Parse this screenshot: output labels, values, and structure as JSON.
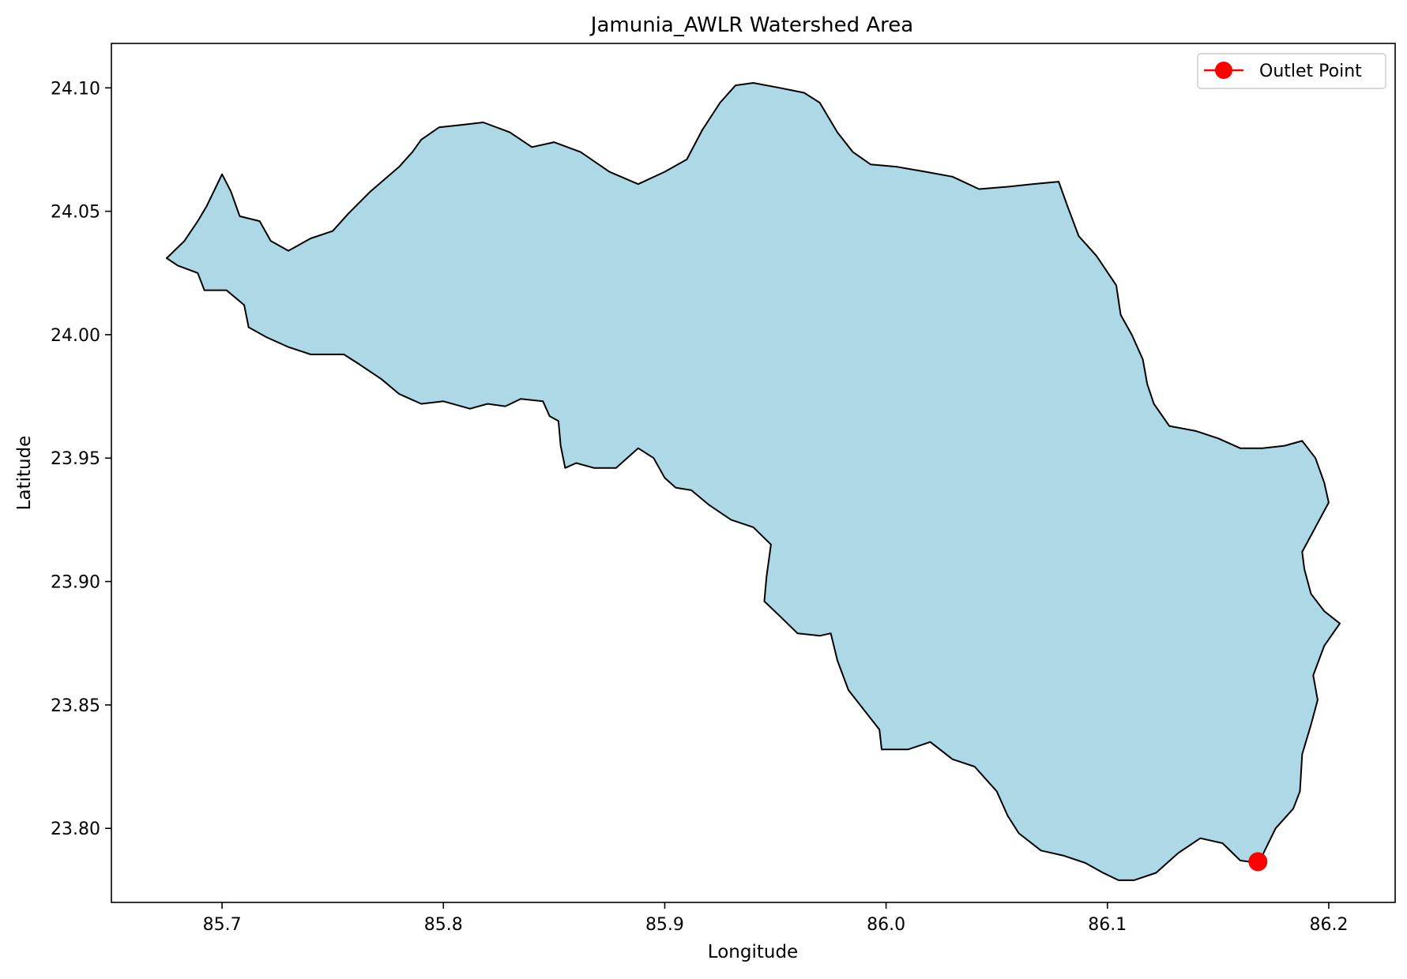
{
  "chart_data": {
    "type": "map",
    "title": "Jamunia_AWLR Watershed Area",
    "xlabel": "Longitude",
    "ylabel": "Latitude",
    "xlim": [
      85.65,
      86.23
    ],
    "ylim": [
      23.77,
      24.118
    ],
    "x_ticks": [
      85.7,
      85.8,
      85.9,
      86.0,
      86.1,
      86.2
    ],
    "x_tick_labels": [
      "85.7",
      "85.8",
      "85.9",
      "86.0",
      "86.1",
      "86.2"
    ],
    "y_ticks": [
      23.8,
      23.85,
      23.9,
      23.95,
      24.0,
      24.05,
      24.1
    ],
    "y_tick_labels": [
      "23.80",
      "23.85",
      "23.90",
      "23.95",
      "24.00",
      "24.05",
      "24.10"
    ],
    "grid": false,
    "legend": {
      "placement": "top-right",
      "entries": [
        "Outlet Point"
      ]
    },
    "watershed": {
      "fill": "#add8e6",
      "edge": "#000000",
      "boundary": [
        [
          85.675,
          24.031
        ],
        [
          85.683,
          24.038
        ],
        [
          85.689,
          24.046
        ],
        [
          85.693,
          24.052
        ],
        [
          85.7,
          24.065
        ],
        [
          85.704,
          24.058
        ],
        [
          85.708,
          24.048
        ],
        [
          85.717,
          24.046
        ],
        [
          85.722,
          24.038
        ],
        [
          85.73,
          24.034
        ],
        [
          85.74,
          24.039
        ],
        [
          85.75,
          24.042
        ],
        [
          85.757,
          24.049
        ],
        [
          85.767,
          24.058
        ],
        [
          85.78,
          24.068
        ],
        [
          85.786,
          24.074
        ],
        [
          85.79,
          24.079
        ],
        [
          85.798,
          24.084
        ],
        [
          85.808,
          24.085
        ],
        [
          85.818,
          24.086
        ],
        [
          85.83,
          24.082
        ],
        [
          85.84,
          24.076
        ],
        [
          85.85,
          24.078
        ],
        [
          85.862,
          24.074
        ],
        [
          85.875,
          24.066
        ],
        [
          85.888,
          24.061
        ],
        [
          85.9,
          24.066
        ],
        [
          85.91,
          24.071
        ],
        [
          85.917,
          24.083
        ],
        [
          85.925,
          24.094
        ],
        [
          85.932,
          24.101
        ],
        [
          85.94,
          24.102
        ],
        [
          85.952,
          24.1
        ],
        [
          85.963,
          24.098
        ],
        [
          85.97,
          24.094
        ],
        [
          85.978,
          24.082
        ],
        [
          85.985,
          24.074
        ],
        [
          85.993,
          24.069
        ],
        [
          86.005,
          24.068
        ],
        [
          86.018,
          24.066
        ],
        [
          86.03,
          24.064
        ],
        [
          86.042,
          24.059
        ],
        [
          86.056,
          24.06
        ],
        [
          86.066,
          24.061
        ],
        [
          86.078,
          24.062
        ],
        [
          86.082,
          24.052
        ],
        [
          86.087,
          24.04
        ],
        [
          86.095,
          24.032
        ],
        [
          86.104,
          24.02
        ],
        [
          86.106,
          24.008
        ],
        [
          86.111,
          24.0
        ],
        [
          86.116,
          23.99
        ],
        [
          86.118,
          23.98
        ],
        [
          86.121,
          23.972
        ],
        [
          86.128,
          23.963
        ],
        [
          86.14,
          23.961
        ],
        [
          86.15,
          23.958
        ],
        [
          86.16,
          23.954
        ],
        [
          86.17,
          23.954
        ],
        [
          86.18,
          23.955
        ],
        [
          86.188,
          23.957
        ],
        [
          86.194,
          23.95
        ],
        [
          86.198,
          23.94
        ],
        [
          86.2,
          23.932
        ],
        [
          86.194,
          23.922
        ],
        [
          86.188,
          23.912
        ],
        [
          86.189,
          23.905
        ],
        [
          86.192,
          23.895
        ],
        [
          86.198,
          23.888
        ],
        [
          86.205,
          23.883
        ],
        [
          86.198,
          23.874
        ],
        [
          86.193,
          23.862
        ],
        [
          86.195,
          23.852
        ],
        [
          86.192,
          23.842
        ],
        [
          86.188,
          23.83
        ],
        [
          86.187,
          23.815
        ],
        [
          86.184,
          23.808
        ],
        [
          86.176,
          23.8
        ],
        [
          86.17,
          23.789
        ],
        [
          86.168,
          23.786
        ],
        [
          86.16,
          23.787
        ],
        [
          86.152,
          23.794
        ],
        [
          86.142,
          23.796
        ],
        [
          86.132,
          23.79
        ],
        [
          86.122,
          23.782
        ],
        [
          86.112,
          23.779
        ],
        [
          86.105,
          23.779
        ],
        [
          86.098,
          23.782
        ],
        [
          86.09,
          23.786
        ],
        [
          86.08,
          23.789
        ],
        [
          86.07,
          23.791
        ],
        [
          86.06,
          23.798
        ],
        [
          86.055,
          23.805
        ],
        [
          86.05,
          23.815
        ],
        [
          86.045,
          23.82
        ],
        [
          86.04,
          23.825
        ],
        [
          86.03,
          23.828
        ],
        [
          86.02,
          23.835
        ],
        [
          86.01,
          23.832
        ],
        [
          85.998,
          23.832
        ],
        [
          85.997,
          23.84
        ],
        [
          85.99,
          23.848
        ],
        [
          85.983,
          23.856
        ],
        [
          85.978,
          23.868
        ],
        [
          85.975,
          23.879
        ],
        [
          85.97,
          23.878
        ],
        [
          85.96,
          23.879
        ],
        [
          85.952,
          23.886
        ],
        [
          85.945,
          23.892
        ],
        [
          85.946,
          23.902
        ],
        [
          85.948,
          23.915
        ],
        [
          85.94,
          23.922
        ],
        [
          85.93,
          23.925
        ],
        [
          85.92,
          23.931
        ],
        [
          85.912,
          23.937
        ],
        [
          85.905,
          23.938
        ],
        [
          85.9,
          23.942
        ],
        [
          85.895,
          23.95
        ],
        [
          85.888,
          23.954
        ],
        [
          85.883,
          23.95
        ],
        [
          85.878,
          23.946
        ],
        [
          85.868,
          23.946
        ],
        [
          85.86,
          23.948
        ],
        [
          85.855,
          23.946
        ],
        [
          85.853,
          23.955
        ],
        [
          85.852,
          23.965
        ],
        [
          85.848,
          23.967
        ],
        [
          85.845,
          23.973
        ],
        [
          85.835,
          23.974
        ],
        [
          85.828,
          23.971
        ],
        [
          85.82,
          23.972
        ],
        [
          85.812,
          23.97
        ],
        [
          85.8,
          23.973
        ],
        [
          85.79,
          23.972
        ],
        [
          85.78,
          23.976
        ],
        [
          85.772,
          23.982
        ],
        [
          85.762,
          23.988
        ],
        [
          85.755,
          23.992
        ],
        [
          85.74,
          23.992
        ],
        [
          85.73,
          23.995
        ],
        [
          85.72,
          23.999
        ],
        [
          85.712,
          24.003
        ],
        [
          85.71,
          24.012
        ],
        [
          85.702,
          24.018
        ],
        [
          85.692,
          24.018
        ],
        [
          85.689,
          24.025
        ],
        [
          85.68,
          24.028
        ],
        [
          85.675,
          24.031
        ]
      ]
    },
    "outlet_point": {
      "name": "Outlet Point",
      "lon": 86.168,
      "lat": 23.7865,
      "color": "#ff0000"
    }
  }
}
